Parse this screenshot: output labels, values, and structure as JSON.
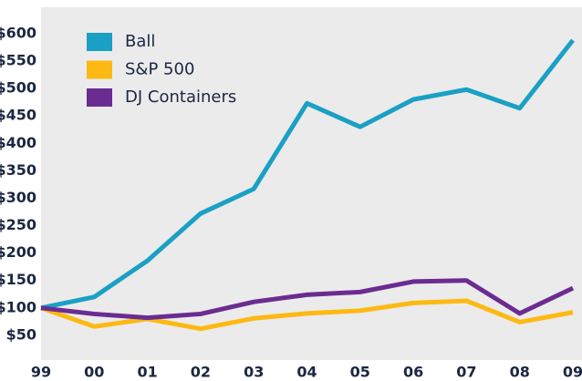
{
  "chart_data": {
    "type": "line",
    "categories": [
      "99",
      "00",
      "01",
      "02",
      "03",
      "04",
      "05",
      "06",
      "07",
      "08",
      "09"
    ],
    "series": [
      {
        "name": "Ball",
        "color": "#1aa0c4",
        "values": [
          100,
          120,
          186,
          272,
          317,
          473,
          430,
          480,
          498,
          464,
          588
        ]
      },
      {
        "name": "S&P 500",
        "color": "#fdb913",
        "values": [
          100,
          66,
          80,
          62,
          81,
          90,
          95,
          109,
          113,
          74,
          92
        ]
      },
      {
        "name": "DJ Containers",
        "color": "#6b2c91",
        "values": [
          100,
          89,
          82,
          89,
          111,
          124,
          129,
          148,
          150,
          90,
          136
        ]
      }
    ],
    "ylim": [
      5,
      648
    ],
    "yticks": [
      {
        "value": 50,
        "label": "$50"
      },
      {
        "value": 100,
        "label": "$100"
      },
      {
        "value": 150,
        "label": "$150"
      },
      {
        "value": 200,
        "label": "$200"
      },
      {
        "value": 250,
        "label": "$250"
      },
      {
        "value": 300,
        "label": "$300"
      },
      {
        "value": 350,
        "label": "$350"
      },
      {
        "value": 400,
        "label": "$400"
      },
      {
        "value": 450,
        "label": "$450"
      },
      {
        "value": 500,
        "label": "$500"
      },
      {
        "value": 550,
        "label": "$550"
      },
      {
        "value": 600,
        "label": "$600"
      }
    ],
    "legend": "upper left"
  }
}
